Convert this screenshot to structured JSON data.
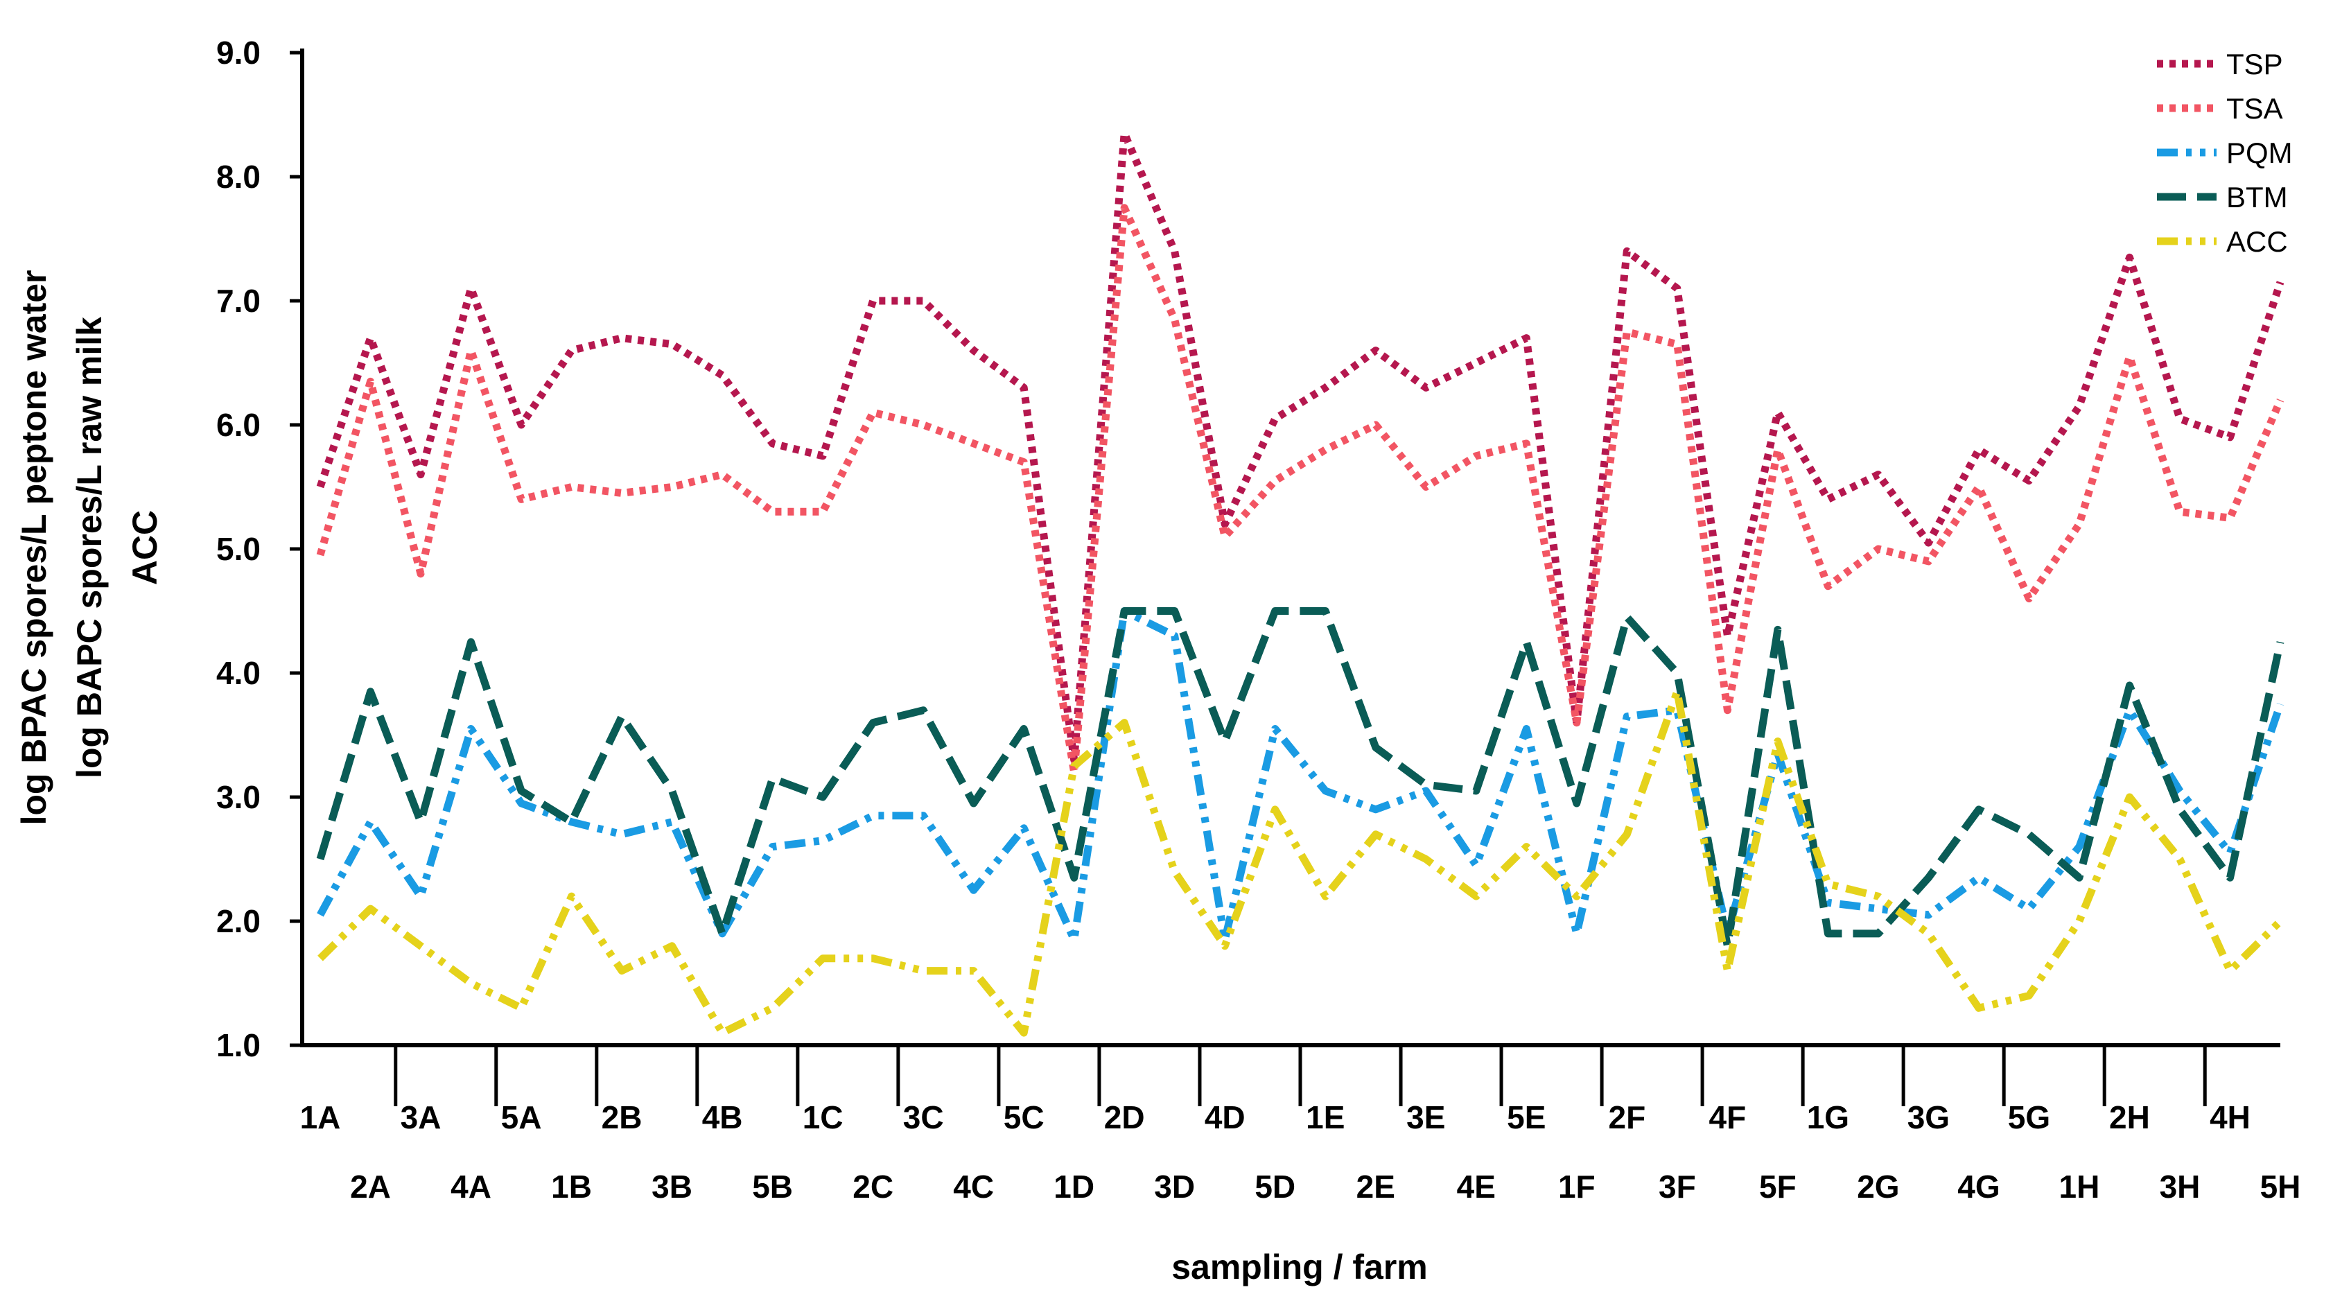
{
  "chart_data": {
    "type": "line",
    "title": "",
    "xlabel": "sampling / farm",
    "ylabel_lines": [
      "log BPAC spores/L peptone water",
      "log BAPC spores/L raw milk",
      "ACC"
    ],
    "ylim": [
      1.0,
      9.0
    ],
    "yticks": [
      "1.0",
      "2.0",
      "3.0",
      "4.0",
      "5.0",
      "6.0",
      "7.0",
      "8.0",
      "9.0"
    ],
    "legend_position": "top-right",
    "categories": [
      "1A",
      "2A",
      "3A",
      "4A",
      "5A",
      "1B",
      "2B",
      "3B",
      "4B",
      "5B",
      "1C",
      "2C",
      "3C",
      "4C",
      "5C",
      "1D",
      "2D",
      "3D",
      "4D",
      "5D",
      "1E",
      "2E",
      "3E",
      "4E",
      "5E",
      "1F",
      "2F",
      "3F",
      "4F",
      "5F",
      "1G",
      "2G",
      "3G",
      "4G",
      "5G",
      "1H",
      "2H",
      "3H",
      "4H",
      "5H"
    ],
    "series": [
      {
        "name": "TSP",
        "color": "#b5174e",
        "dash": "dotted",
        "values": [
          5.5,
          6.7,
          5.6,
          7.1,
          6.0,
          6.6,
          6.7,
          6.65,
          6.4,
          5.85,
          5.75,
          7.0,
          7.0,
          6.6,
          6.3,
          3.3,
          8.35,
          7.4,
          5.2,
          6.05,
          6.3,
          6.6,
          6.3,
          6.5,
          6.7,
          3.6,
          7.4,
          7.1,
          4.3,
          6.1,
          5.4,
          5.6,
          5.05,
          5.8,
          5.55,
          6.15,
          7.35,
          6.05,
          5.9,
          7.15
        ]
      },
      {
        "name": "TSA",
        "color": "#f25563",
        "dash": "dotted",
        "values": [
          4.95,
          6.35,
          4.8,
          6.6,
          5.4,
          5.5,
          5.45,
          5.5,
          5.6,
          5.3,
          5.3,
          6.1,
          6.0,
          5.85,
          5.7,
          3.2,
          7.75,
          6.85,
          5.1,
          5.55,
          5.8,
          6.0,
          5.5,
          5.75,
          5.85,
          3.6,
          6.75,
          6.65,
          3.7,
          5.8,
          4.7,
          5.0,
          4.9,
          5.5,
          4.6,
          5.2,
          6.55,
          5.3,
          5.25,
          6.2
        ]
      },
      {
        "name": "PQM",
        "color": "#1a9be3",
        "dash": "dashdotdot",
        "values": [
          2.05,
          2.8,
          2.2,
          3.55,
          2.95,
          2.8,
          2.7,
          2.8,
          1.9,
          2.6,
          2.65,
          2.85,
          2.85,
          2.25,
          2.75,
          1.85,
          4.5,
          4.3,
          1.85,
          3.55,
          3.05,
          2.9,
          3.05,
          2.45,
          3.55,
          1.9,
          3.65,
          3.7,
          1.9,
          3.35,
          2.15,
          2.1,
          2.05,
          2.35,
          2.1,
          2.6,
          3.7,
          3.05,
          2.55,
          3.75
        ]
      },
      {
        "name": "BTM",
        "color": "#0a5c56",
        "dash": "dashed",
        "values": [
          2.5,
          3.85,
          2.8,
          4.25,
          3.05,
          2.8,
          3.65,
          3.05,
          1.9,
          3.15,
          3.0,
          3.6,
          3.7,
          2.95,
          3.55,
          2.35,
          4.5,
          4.5,
          3.45,
          4.5,
          4.5,
          3.4,
          3.1,
          3.05,
          4.25,
          2.95,
          4.45,
          4.0,
          1.8,
          4.35,
          1.9,
          1.9,
          2.35,
          2.9,
          2.7,
          2.35,
          3.9,
          2.9,
          2.35,
          4.25
        ]
      },
      {
        "name": "ACC",
        "color": "#e5d21b",
        "dash": "dashdotdot",
        "values": [
          1.7,
          2.1,
          1.8,
          1.5,
          1.3,
          2.2,
          1.6,
          1.8,
          1.1,
          1.3,
          1.7,
          1.7,
          1.6,
          1.6,
          1.1,
          3.25,
          3.6,
          2.4,
          1.8,
          2.9,
          2.2,
          2.7,
          2.5,
          2.2,
          2.6,
          2.2,
          2.7,
          3.85,
          1.6,
          3.45,
          2.3,
          2.2,
          1.9,
          1.3,
          1.4,
          2.0,
          3.0,
          2.5,
          1.6,
          2.0
        ]
      }
    ]
  }
}
